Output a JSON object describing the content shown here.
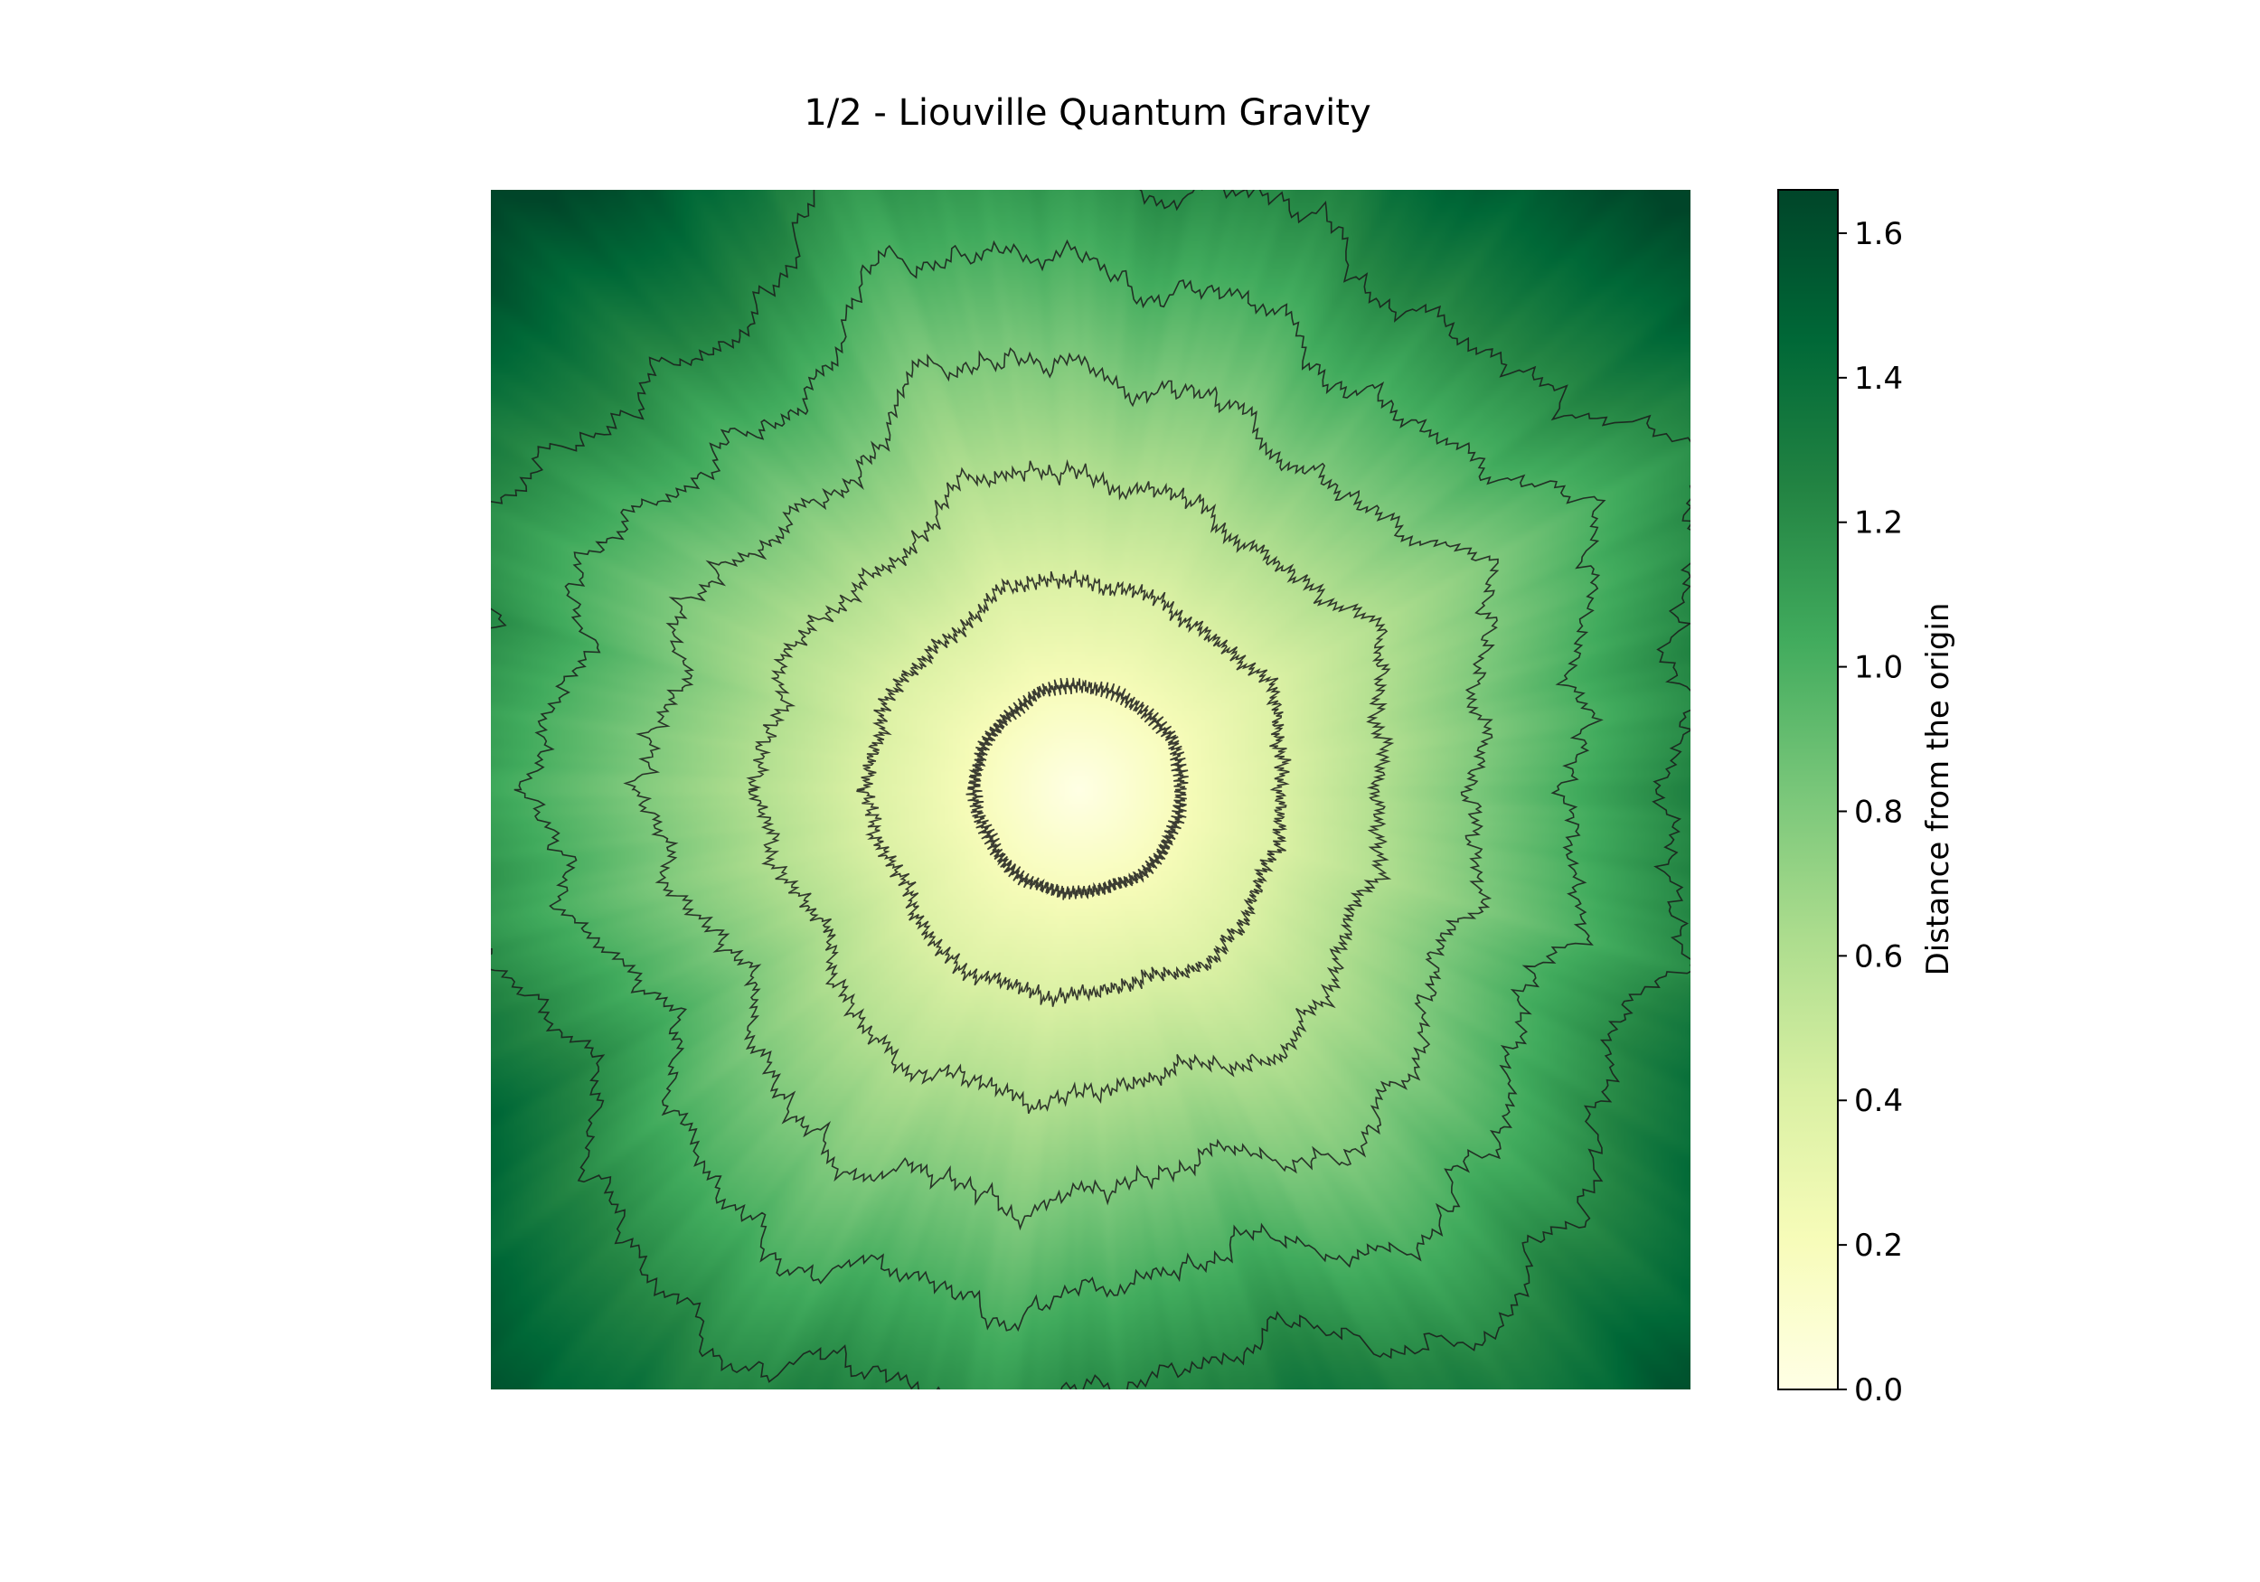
{
  "chart_data": {
    "type": "heatmap",
    "title": "1/2 - Liouville Quantum Gravity",
    "xlabel": "",
    "ylabel": "",
    "grid": false,
    "field": {
      "description_of_values": "distance from the origin",
      "min": 0.0,
      "max": 1.66,
      "origin_value": 0.0,
      "corner_value": 1.66,
      "center_fraction": [
        0.49,
        0.5
      ]
    },
    "contour_levels": [
      0.2,
      0.4,
      0.6,
      0.8,
      1.0,
      1.2
    ],
    "colorbar": {
      "label": "Distance from the origin",
      "colormap": "YlGn",
      "range": [
        0.0,
        1.66
      ],
      "ticks": [
        0.0,
        0.2,
        0.4,
        0.6,
        0.8,
        1.0,
        1.2,
        1.4,
        1.6
      ],
      "tick_labels": [
        "0.0",
        "0.2",
        "0.4",
        "0.6",
        "0.8",
        "1.0",
        "1.2",
        "1.4",
        "1.6"
      ]
    },
    "colors": {
      "low": "#ffffe5",
      "high": "#004529",
      "contour": "#1a1a1a"
    }
  }
}
